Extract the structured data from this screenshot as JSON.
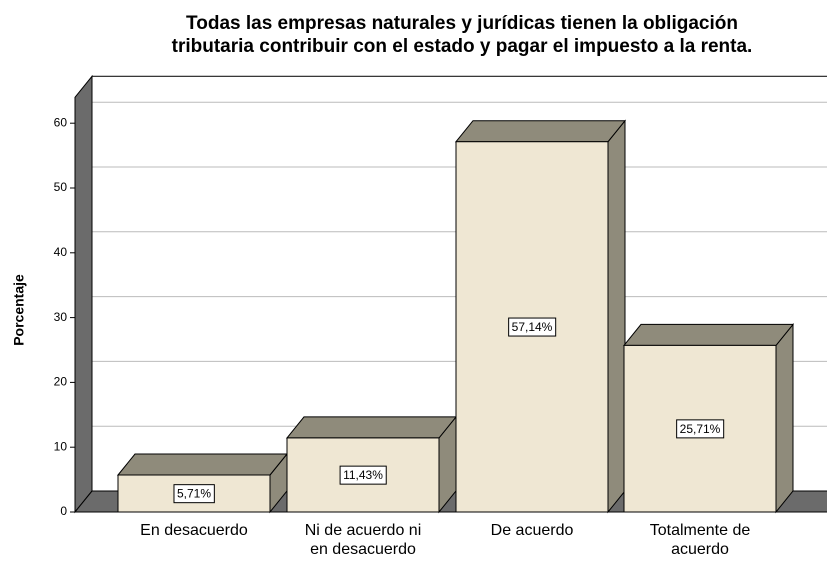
{
  "chart_data": {
    "type": "bar3d",
    "title": [
      "Todas las empresas naturales y jurídicas tienen la obligación",
      "tributaria contribuir con el estado y pagar el impuesto a la renta."
    ],
    "y_label": "Porcentaje",
    "categories": [
      [
        "En desacuerdo"
      ],
      [
        "Ni de acuerdo ni",
        "en desacuerdo"
      ],
      [
        "De acuerdo"
      ],
      [
        "Totalmente de",
        "acuerdo"
      ]
    ],
    "values": [
      5.71,
      11.43,
      57.14,
      25.71
    ],
    "value_labels": [
      "5,71%",
      "11,43%",
      "57,14%",
      "25,71%"
    ],
    "color": "#efe7d3",
    "ylim": [
      0,
      64
    ],
    "yticks": [
      0,
      10,
      20,
      30,
      40,
      50,
      60
    ],
    "grid": true
  }
}
